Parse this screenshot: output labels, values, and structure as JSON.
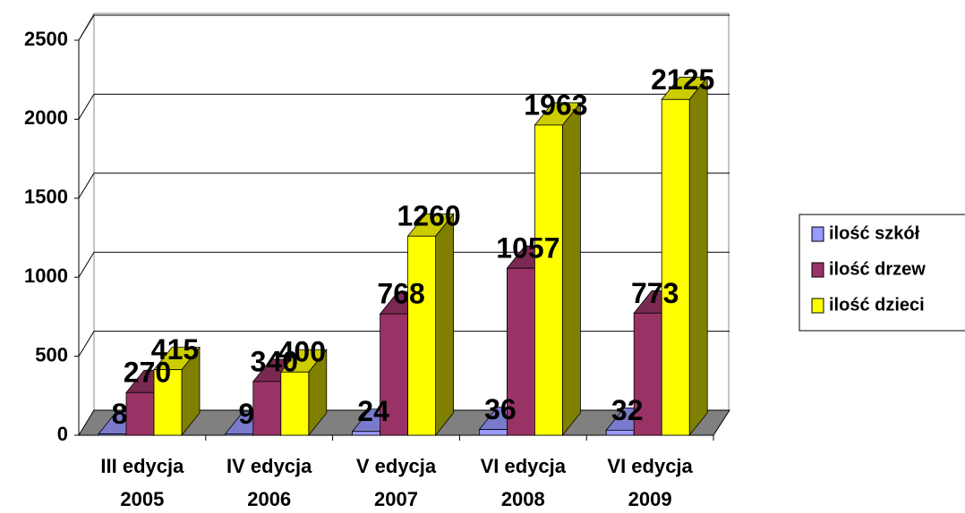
{
  "chart_data": {
    "type": "bar3d",
    "categories": [
      [
        "III edycja",
        "2005"
      ],
      [
        "IV edycja",
        "2006"
      ],
      [
        "V edycja",
        "2007"
      ],
      [
        "VI edycja",
        "2008"
      ],
      [
        "VI edycja",
        "2009"
      ]
    ],
    "series": [
      {
        "name": "ilość szkół",
        "color": "#9999ff",
        "values": [
          8,
          9,
          24,
          36,
          32
        ]
      },
      {
        "name": "ilość drzew",
        "color": "#993366",
        "values": [
          270,
          340,
          768,
          1057,
          773
        ]
      },
      {
        "name": "ilość dzieci",
        "color": "#ffff00",
        "values": [
          415,
          400,
          1260,
          1963,
          2125
        ]
      }
    ],
    "ylim": [
      0,
      2500
    ],
    "yticks": [
      0,
      500,
      1000,
      1500,
      2000,
      2500
    ],
    "grid": true,
    "legend": "right"
  }
}
